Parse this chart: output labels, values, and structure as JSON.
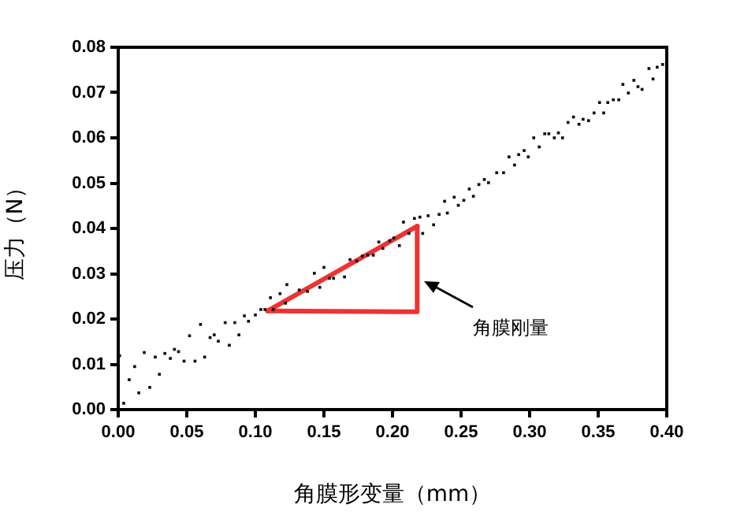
{
  "chart_data": {
    "type": "scatter",
    "xlabel": "角膜形变量（mm）",
    "ylabel": "压力（N）",
    "xlim": [
      0,
      0.4
    ],
    "ylim": [
      0,
      0.08
    ],
    "xticks": [
      {
        "value": 0,
        "label": "0.00"
      },
      {
        "value": 0.05,
        "label": "0.05"
      },
      {
        "value": 0.1,
        "label": "0.10"
      },
      {
        "value": 0.15,
        "label": "0.15"
      },
      {
        "value": 0.2,
        "label": "0.20"
      },
      {
        "value": 0.25,
        "label": "0.25"
      },
      {
        "value": 0.3,
        "label": "0.30"
      },
      {
        "value": 0.35,
        "label": "0.35"
      },
      {
        "value": 0.4,
        "label": "0.40"
      }
    ],
    "yticks": [
      {
        "value": 0,
        "label": "0.00"
      },
      {
        "value": 0.01,
        "label": "0.01"
      },
      {
        "value": 0.02,
        "label": "0.02"
      },
      {
        "value": 0.03,
        "label": "0.03"
      },
      {
        "value": 0.04,
        "label": "0.04"
      },
      {
        "value": 0.05,
        "label": "0.05"
      },
      {
        "value": 0.06,
        "label": "0.06"
      },
      {
        "value": 0.07,
        "label": "0.07"
      },
      {
        "value": 0.08,
        "label": "0.08"
      }
    ],
    "grid": false,
    "legend": false,
    "marker": "square",
    "annotations": [
      "角膜刚量"
    ],
    "series": [
      {
        "color": "#111111",
        "x": [
          0.001,
          0.004,
          0.008,
          0.012,
          0.015,
          0.019,
          0.023,
          0.027,
          0.03,
          0.034,
          0.038,
          0.041,
          0.044,
          0.048,
          0.052,
          0.056,
          0.06,
          0.063,
          0.067,
          0.07,
          0.073,
          0.078,
          0.081,
          0.085,
          0.088,
          0.092,
          0.095,
          0.1,
          0.104,
          0.107,
          0.111,
          0.113,
          0.118,
          0.122,
          0.123,
          0.132,
          0.138,
          0.143,
          0.147,
          0.15,
          0.154,
          0.157,
          0.165,
          0.169,
          0.174,
          0.178,
          0.182,
          0.186,
          0.19,
          0.193,
          0.198,
          0.201,
          0.205,
          0.208,
          0.212,
          0.216,
          0.22,
          0.222,
          0.226,
          0.23,
          0.234,
          0.238,
          0.24,
          0.245,
          0.248,
          0.252,
          0.256,
          0.259,
          0.263,
          0.267,
          0.27,
          0.276,
          0.281,
          0.285,
          0.289,
          0.292,
          0.296,
          0.299,
          0.303,
          0.307,
          0.311,
          0.314,
          0.318,
          0.321,
          0.324,
          0.328,
          0.332,
          0.336,
          0.339,
          0.343,
          0.347,
          0.351,
          0.354,
          0.357,
          0.361,
          0.365,
          0.368,
          0.372,
          0.376,
          0.379,
          0.382,
          0.387,
          0.39,
          0.393,
          0.397
        ],
        "values": [
          0.0119,
          0.0014,
          0.0066,
          0.0095,
          0.0037,
          0.0126,
          0.0049,
          0.0116,
          0.0078,
          0.0124,
          0.0113,
          0.0133,
          0.0128,
          0.0107,
          0.0163,
          0.0107,
          0.0188,
          0.0116,
          0.0159,
          0.0165,
          0.0151,
          0.0192,
          0.0142,
          0.0192,
          0.0165,
          0.0207,
          0.0195,
          0.0209,
          0.0221,
          0.0221,
          0.0247,
          0.0221,
          0.0256,
          0.0235,
          0.0276,
          0.0264,
          0.0261,
          0.0301,
          0.027,
          0.0314,
          0.029,
          0.029,
          0.0293,
          0.0331,
          0.0328,
          0.0339,
          0.0341,
          0.0341,
          0.037,
          0.0356,
          0.0373,
          0.0379,
          0.0362,
          0.0414,
          0.0389,
          0.0422,
          0.0425,
          0.0389,
          0.0428,
          0.0408,
          0.0431,
          0.046,
          0.0434,
          0.0469,
          0.0451,
          0.0462,
          0.0487,
          0.0471,
          0.0497,
          0.0508,
          0.0501,
          0.0523,
          0.0523,
          0.0558,
          0.054,
          0.0563,
          0.0572,
          0.0558,
          0.06,
          0.058,
          0.0609,
          0.0609,
          0.06,
          0.0611,
          0.06,
          0.0634,
          0.0646,
          0.063,
          0.0641,
          0.0638,
          0.0655,
          0.0678,
          0.0655,
          0.0678,
          0.0684,
          0.0684,
          0.0718,
          0.0699,
          0.0727,
          0.0713,
          0.0707,
          0.0753,
          0.073,
          0.0756,
          0.0762
        ]
      },
      {
        "type": "line",
        "color": "#ee3333",
        "marker": "none",
        "line_style": "solid",
        "x": [
          0.109,
          0.218
        ],
        "values": [
          0.0218,
          0.0405
        ]
      },
      {
        "type": "line",
        "color": "#ee3333",
        "marker": "none",
        "line_style": "solid",
        "x": [
          0.109,
          0.218,
          0.218
        ],
        "values": [
          0.0218,
          0.0216,
          0.0405
        ]
      }
    ]
  }
}
